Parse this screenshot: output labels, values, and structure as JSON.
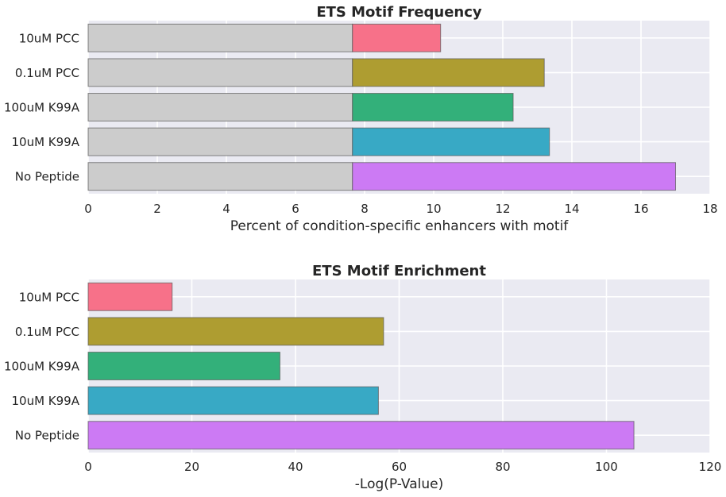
{
  "chart_data": [
    {
      "type": "bar",
      "orientation": "horizontal",
      "stacked": true,
      "title": "ETS Motif Frequency",
      "xlabel": "Percent of condition-specific enhancers with motif",
      "ylabel": "",
      "categories": [
        "10uM PCC",
        "0.1uM PCC",
        "100uM K99A",
        "10uM K99A",
        "No Peptide"
      ],
      "series": [
        {
          "values": [
            7.65,
            7.65,
            7.65,
            7.65,
            7.65
          ],
          "color": "#cccccc"
        },
        {
          "values": [
            2.55,
            5.55,
            4.65,
            5.7,
            9.35
          ],
          "colors": [
            "#f77189",
            "#ae9d31",
            "#33b07a",
            "#38a9c5",
            "#cc7af4"
          ]
        }
      ],
      "totals": [
        10.2,
        13.2,
        12.3,
        13.35,
        17.0
      ],
      "xlim": [
        0,
        18
      ],
      "xticks": [
        0,
        2,
        4,
        6,
        8,
        10,
        12,
        14,
        16,
        18
      ],
      "grid": true
    },
    {
      "type": "bar",
      "orientation": "horizontal",
      "title": "ETS Motif Enrichment",
      "xlabel": "-Log(P-Value)",
      "ylabel": "",
      "categories": [
        "10uM PCC",
        "0.1uM PCC",
        "100uM K99A",
        "10uM K99A",
        "No Peptide"
      ],
      "values": [
        16.2,
        57,
        37,
        56,
        105.3
      ],
      "colors": [
        "#f77189",
        "#ae9d31",
        "#33b07a",
        "#38a9c5",
        "#cc7af4"
      ],
      "xlim": [
        0,
        120
      ],
      "xticks": [
        0,
        20,
        40,
        60,
        80,
        100,
        120
      ],
      "grid": true
    }
  ]
}
